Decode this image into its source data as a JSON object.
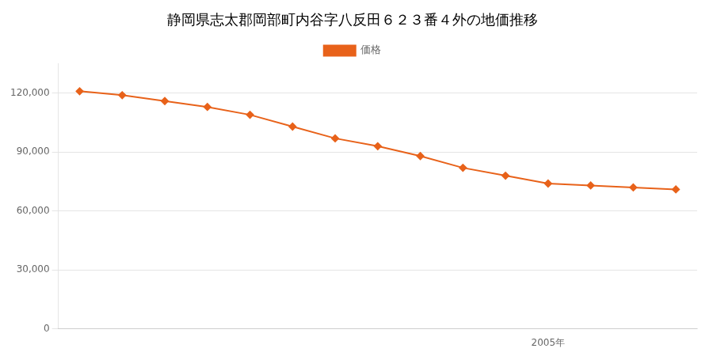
{
  "chart_data": {
    "type": "line",
    "title": "静岡県志太郡岡部町内谷字八反田６２３番４外の地価推移",
    "x": [
      1994,
      1995,
      1996,
      1997,
      1998,
      1999,
      2000,
      2001,
      2002,
      2003,
      2004,
      2005,
      2006,
      2007,
      2008
    ],
    "series": [
      {
        "name": "価格",
        "color": "#e8621a",
        "marker": "diamond",
        "values": [
          121000,
          119000,
          116000,
          113000,
          109000,
          103000,
          97000,
          93000,
          88000,
          82000,
          78000,
          74000,
          73000,
          72000,
          71000
        ]
      }
    ],
    "xlim": [
      1993.5,
      2008.5
    ],
    "xticks": [
      {
        "value": 2005,
        "label": "2005年"
      }
    ],
    "ylim": [
      0,
      135000
    ],
    "yticks": [
      0,
      {
        "value": 30000,
        "label": "30,000"
      },
      {
        "value": 60000,
        "label": "60,000"
      },
      {
        "value": 90000,
        "label": "90,000"
      },
      {
        "value": 120000,
        "label": "120,000"
      }
    ],
    "grid": true,
    "legend": "top"
  }
}
